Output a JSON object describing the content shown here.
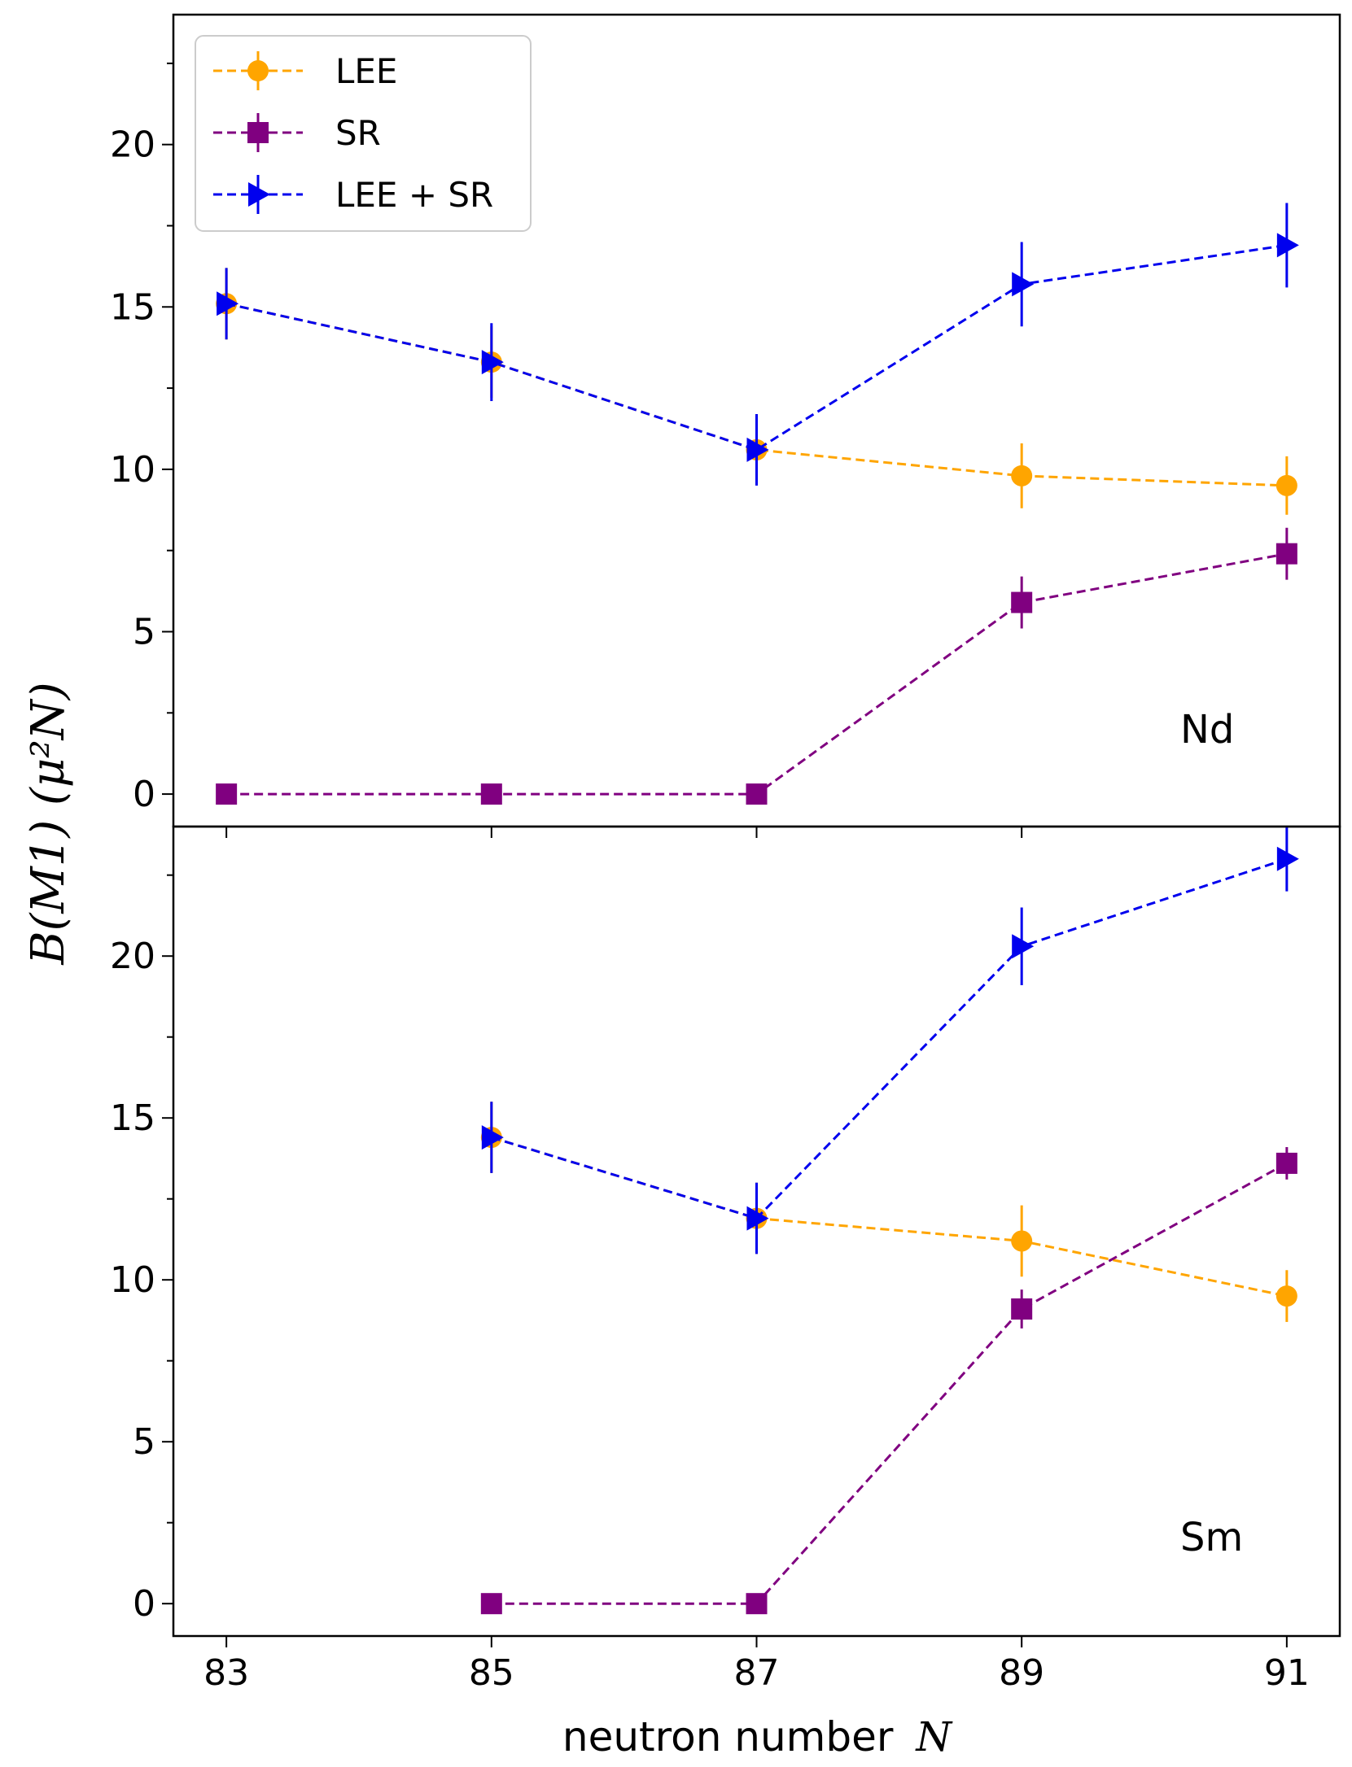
{
  "figure": {
    "xlabel_text": "neutron number",
    "xlabel_var": "N",
    "ylabel": "B(M1) (μ²N)"
  },
  "legend": {
    "entries": [
      "LEE",
      "SR",
      "LEE + SR"
    ]
  },
  "colors": {
    "LEE": "#ffa500",
    "SR": "#800080",
    "LEE + SR": "#0000ee"
  },
  "chart_data": [
    {
      "type": "line",
      "panel": "Nd",
      "x": [
        83,
        85,
        87,
        89,
        91
      ],
      "xlim": [
        82.6,
        91.4
      ],
      "ylim": [
        -1,
        24
      ],
      "yticks": [
        0,
        5,
        10,
        15,
        20
      ],
      "series": [
        {
          "name": "LEE",
          "marker": "circle",
          "values": [
            15.1,
            13.3,
            10.6,
            9.8,
            9.5
          ],
          "errors": [
            1.1,
            1.1,
            1.0,
            1.0,
            0.9
          ]
        },
        {
          "name": "SR",
          "marker": "square",
          "values": [
            0.0,
            0.0,
            0.0,
            5.9,
            7.4
          ],
          "errors": [
            0,
            0,
            0,
            0.8,
            0.8
          ]
        },
        {
          "name": "LEE + SR",
          "marker": "triangle-right",
          "values": [
            15.1,
            13.3,
            10.6,
            15.7,
            16.9
          ],
          "errors": [
            1.1,
            1.2,
            1.1,
            1.3,
            1.3
          ]
        }
      ]
    },
    {
      "type": "line",
      "panel": "Sm",
      "x": [
        83,
        85,
        87,
        89,
        91
      ],
      "xlim": [
        82.6,
        91.4
      ],
      "ylim": [
        -1,
        24
      ],
      "yticks": [
        0,
        5,
        10,
        15,
        20
      ],
      "series": [
        {
          "name": "LEE",
          "marker": "circle",
          "values": [
            null,
            14.4,
            11.9,
            11.2,
            9.5
          ],
          "errors": [
            0,
            1.1,
            1.1,
            1.1,
            0.8
          ]
        },
        {
          "name": "SR",
          "marker": "square",
          "values": [
            null,
            0.0,
            0.0,
            9.1,
            13.6
          ],
          "errors": [
            0,
            0,
            0,
            0.6,
            0.5
          ]
        },
        {
          "name": "LEE + SR",
          "marker": "triangle-right",
          "values": [
            null,
            14.4,
            11.9,
            20.3,
            23.0
          ],
          "errors": [
            0,
            1.1,
            1.1,
            1.2,
            1.0
          ]
        }
      ]
    }
  ]
}
